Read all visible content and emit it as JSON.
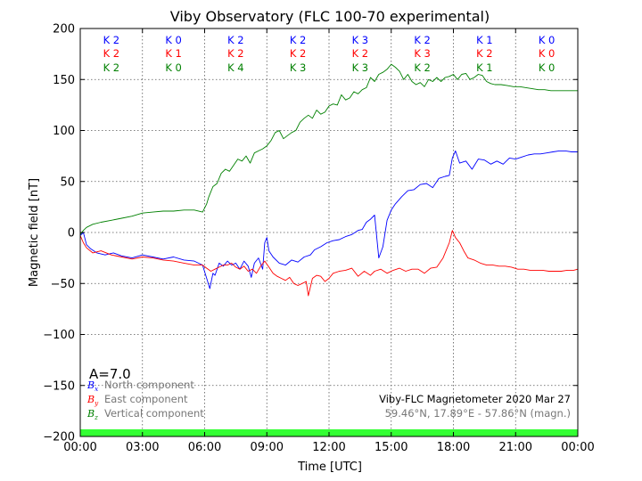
{
  "chart_data": {
    "type": "line",
    "title": "Viby Observatory (FLC 100-70 experimental)",
    "xlabel": "Time [UTC]",
    "ylabel": "Magnetic field [nT]",
    "xlim": [
      0,
      24
    ],
    "ylim": [
      -200,
      200
    ],
    "grid": true,
    "xticks": [
      0,
      3,
      6,
      9,
      12,
      15,
      18,
      21,
      24
    ],
    "xtick_labels": [
      "00:00",
      "03:00",
      "06:00",
      "09:00",
      "12:00",
      "15:00",
      "18:00",
      "21:00",
      "00:00"
    ],
    "yticks": [
      -200,
      -150,
      -100,
      -50,
      0,
      50,
      100,
      150,
      200
    ],
    "ytick_labels": [
      "−200",
      "−150",
      "−100",
      "−50",
      "0",
      "50",
      "100",
      "150",
      "200"
    ],
    "series": [
      {
        "name": "North component",
        "symbol": "B",
        "subscript": "x",
        "color": "#0000ff",
        "x": [
          0,
          0.15,
          0.3,
          0.5,
          0.8,
          1.2,
          1.6,
          2.0,
          2.5,
          3.0,
          3.5,
          4.0,
          4.5,
          5.0,
          5.5,
          5.9,
          6.1,
          6.25,
          6.4,
          6.5,
          6.7,
          6.9,
          7.1,
          7.3,
          7.5,
          7.7,
          7.9,
          8.1,
          8.25,
          8.4,
          8.6,
          8.8,
          8.9,
          9.0,
          9.1,
          9.3,
          9.6,
          9.9,
          10.2,
          10.5,
          10.8,
          11.1,
          11.3,
          11.6,
          11.9,
          12.2,
          12.5,
          12.8,
          13.1,
          13.4,
          13.6,
          13.8,
          14.0,
          14.2,
          14.4,
          14.6,
          14.8,
          15.0,
          15.2,
          15.5,
          15.8,
          16.1,
          16.4,
          16.7,
          17.0,
          17.3,
          17.6,
          17.8,
          17.95,
          18.1,
          18.3,
          18.6,
          18.9,
          19.2,
          19.5,
          19.8,
          20.1,
          20.4,
          20.7,
          21.0,
          21.3,
          21.6,
          21.9,
          22.2,
          22.5,
          22.8,
          23.1,
          23.4,
          23.7,
          24.0
        ],
        "y": [
          -3,
          0,
          -12,
          -16,
          -20,
          -22,
          -20,
          -23,
          -25,
          -22,
          -24,
          -26,
          -24,
          -27,
          -28,
          -32,
          -45,
          -55,
          -40,
          -42,
          -30,
          -33,
          -28,
          -32,
          -30,
          -36,
          -28,
          -33,
          -44,
          -30,
          -25,
          -36,
          -10,
          -5,
          -18,
          -24,
          -30,
          -32,
          -27,
          -29,
          -24,
          -22,
          -17,
          -14,
          -10,
          -8,
          -7,
          -4,
          -2,
          2,
          3,
          10,
          13,
          17,
          -25,
          -14,
          12,
          22,
          28,
          35,
          41,
          42,
          47,
          48,
          44,
          53,
          55,
          56,
          73,
          80,
          68,
          70,
          62,
          72,
          71,
          67,
          70,
          67,
          73,
          72,
          74,
          76,
          77,
          77,
          78,
          79,
          80,
          80,
          79,
          79
        ]
      },
      {
        "name": "East component",
        "symbol": "B",
        "subscript": "y",
        "color": "#ff0000",
        "x": [
          0,
          0.15,
          0.3,
          0.6,
          1.0,
          1.5,
          2.0,
          2.5,
          3.0,
          3.5,
          4.0,
          4.5,
          5.0,
          5.5,
          5.9,
          6.1,
          6.3,
          6.5,
          6.7,
          6.9,
          7.1,
          7.3,
          7.5,
          7.7,
          7.9,
          8.1,
          8.3,
          8.5,
          8.7,
          8.9,
          9.1,
          9.3,
          9.5,
          9.7,
          9.9,
          10.1,
          10.3,
          10.5,
          10.7,
          10.9,
          11.0,
          11.2,
          11.4,
          11.6,
          11.8,
          12.0,
          12.2,
          12.5,
          12.8,
          13.1,
          13.4,
          13.7,
          14.0,
          14.2,
          14.5,
          14.8,
          15.1,
          15.4,
          15.7,
          16.0,
          16.3,
          16.6,
          16.9,
          17.2,
          17.5,
          17.8,
          17.95,
          18.1,
          18.3,
          18.5,
          18.7,
          19.0,
          19.3,
          19.6,
          19.9,
          20.2,
          20.5,
          20.8,
          21.1,
          21.4,
          21.7,
          22.0,
          22.3,
          22.6,
          22.9,
          23.2,
          23.5,
          23.8,
          24.0
        ],
        "y": [
          -3,
          -10,
          -15,
          -20,
          -18,
          -22,
          -24,
          -26,
          -24,
          -25,
          -27,
          -28,
          -30,
          -32,
          -32,
          -35,
          -38,
          -36,
          -34,
          -32,
          -32,
          -30,
          -34,
          -36,
          -33,
          -38,
          -36,
          -40,
          -33,
          -28,
          -34,
          -40,
          -43,
          -45,
          -47,
          -44,
          -50,
          -52,
          -50,
          -48,
          -62,
          -45,
          -42,
          -43,
          -48,
          -45,
          -40,
          -38,
          -37,
          -35,
          -43,
          -38,
          -42,
          -38,
          -36,
          -40,
          -37,
          -35,
          -38,
          -36,
          -36,
          -40,
          -35,
          -34,
          -25,
          -10,
          2,
          -5,
          -10,
          -18,
          -25,
          -27,
          -30,
          -32,
          -32,
          -33,
          -33,
          -34,
          -36,
          -36,
          -37,
          -37,
          -37,
          -38,
          -38,
          -38,
          -37,
          -37,
          -36
        ]
      },
      {
        "name": "Vertical component",
        "symbol": "B",
        "subscript": "z",
        "color": "#008000",
        "x": [
          0,
          0.15,
          0.3,
          0.6,
          1.0,
          1.5,
          2.0,
          2.5,
          3.0,
          3.5,
          4.0,
          4.5,
          5.0,
          5.5,
          5.9,
          6.1,
          6.2,
          6.4,
          6.6,
          6.8,
          7.0,
          7.2,
          7.4,
          7.6,
          7.8,
          8.0,
          8.2,
          8.4,
          8.6,
          8.8,
          9.0,
          9.2,
          9.4,
          9.6,
          9.8,
          10.0,
          10.2,
          10.4,
          10.6,
          10.8,
          11.0,
          11.2,
          11.4,
          11.6,
          11.8,
          12.0,
          12.2,
          12.4,
          12.6,
          12.8,
          13.0,
          13.2,
          13.4,
          13.6,
          13.8,
          14.0,
          14.2,
          14.4,
          14.6,
          14.8,
          15.0,
          15.2,
          15.4,
          15.6,
          15.8,
          16.0,
          16.2,
          16.4,
          16.6,
          16.8,
          17.0,
          17.2,
          17.4,
          17.6,
          17.8,
          18.0,
          18.2,
          18.4,
          18.6,
          18.8,
          19.0,
          19.2,
          19.4,
          19.6,
          19.8,
          20.0,
          20.3,
          20.6,
          20.9,
          21.2,
          21.5,
          21.8,
          22.1,
          22.4,
          22.7,
          23.0,
          23.3,
          23.6,
          24.0
        ],
        "y": [
          -2,
          2,
          5,
          8,
          10,
          12,
          14,
          16,
          19,
          20,
          21,
          21,
          22,
          22,
          20,
          28,
          35,
          45,
          48,
          58,
          62,
          60,
          66,
          72,
          70,
          75,
          68,
          78,
          80,
          82,
          85,
          90,
          98,
          100,
          92,
          95,
          98,
          100,
          108,
          112,
          115,
          112,
          120,
          116,
          118,
          124,
          126,
          125,
          135,
          130,
          132,
          138,
          136,
          140,
          142,
          152,
          148,
          155,
          157,
          160,
          165,
          162,
          158,
          150,
          155,
          148,
          145,
          147,
          143,
          150,
          148,
          152,
          148,
          152,
          153,
          155,
          150,
          155,
          156,
          150,
          152,
          155,
          154,
          148,
          146,
          145,
          145,
          144,
          143,
          143,
          142,
          141,
          140,
          140,
          139,
          139,
          139,
          139,
          139
        ]
      }
    ],
    "k_indices": {
      "x": [
        1.5,
        4.5,
        7.5,
        10.5,
        13.5,
        16.5,
        19.5,
        22.5
      ],
      "rows": [
        {
          "color": "#0000ff",
          "labels": [
            "K 2",
            "K 0",
            "K 2",
            "K 2",
            "K 3",
            "K 2",
            "K 1",
            "K 0"
          ]
        },
        {
          "color": "#ff0000",
          "labels": [
            "K 2",
            "K 1",
            "K 2",
            "K 2",
            "K 2",
            "K 3",
            "K 2",
            "K 0"
          ]
        },
        {
          "color": "#008000",
          "labels": [
            "K 2",
            "K 0",
            "K 4",
            "K 3",
            "K 3",
            "K 2",
            "K 1",
            "K 0"
          ]
        }
      ]
    },
    "status_band": {
      "color": "#33ff33",
      "from": -200,
      "to": -193
    }
  },
  "a_index": "A=7.0",
  "info_text": "Viby-FLC Magnetometer 2020 Mar 27",
  "coords_text": "59.46°N, 17.89°E - 57.86°N (magn.)"
}
